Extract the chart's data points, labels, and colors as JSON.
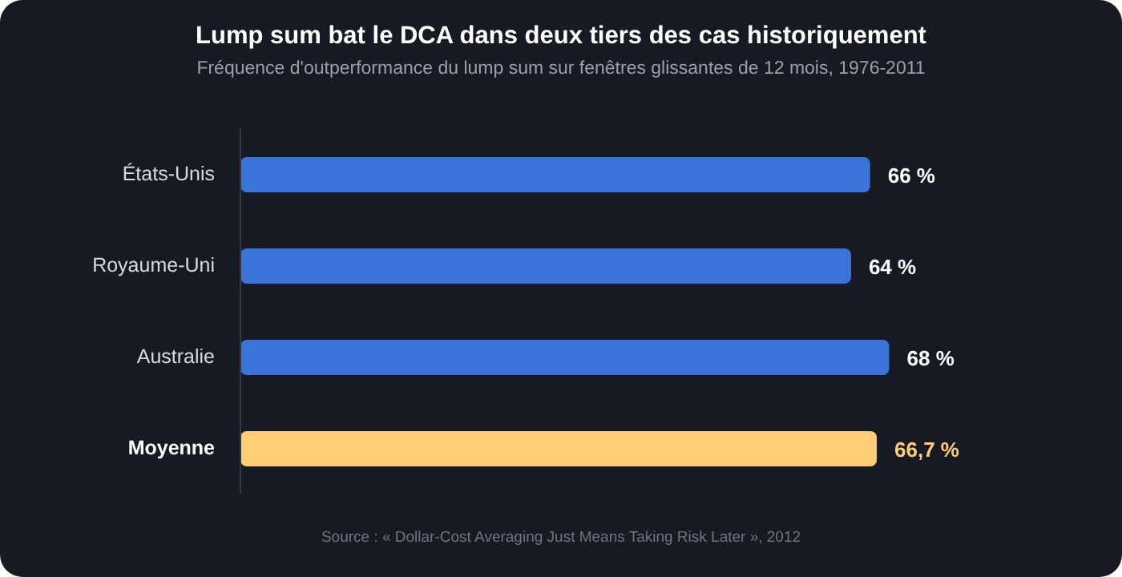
{
  "chart_data": {
    "type": "bar",
    "orientation": "horizontal",
    "title": "Lump sum bat le DCA dans deux tiers des cas historiquement",
    "subtitle": "Fréquence d'outperformance du lump sum sur fenêtres glissantes de 12 mois, 1976-2011",
    "categories": [
      "États-Unis",
      "Royaume-Uni",
      "Australie",
      "Moyenne"
    ],
    "values": [
      66,
      64,
      68,
      66.7
    ],
    "colors": [
      "#3a74d9",
      "#3a74d9",
      "#3a74d9",
      "#ffcd78"
    ],
    "value_labels": [
      "66 %",
      "64 %",
      "68 %",
      "66,7 %"
    ],
    "annotations": [
      "Source : « Dollar-Cost Averaging Just Means Taking Risk Later », 2012"
    ]
  }
}
